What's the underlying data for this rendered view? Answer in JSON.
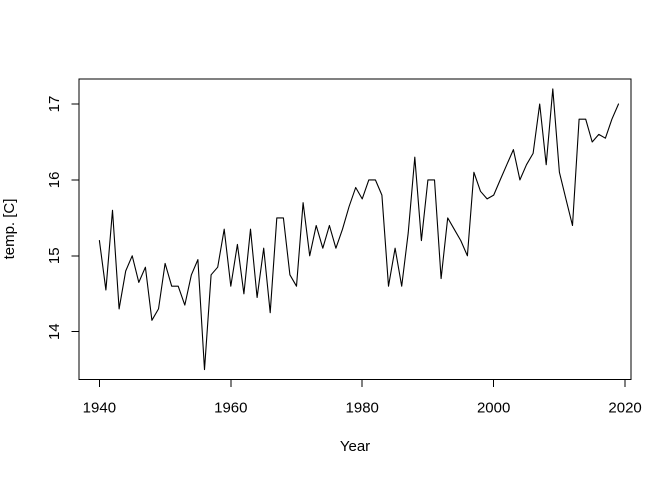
{
  "chart_data": {
    "type": "line",
    "title": "",
    "xlabel": "Year",
    "ylabel": "temp. [C]",
    "line_color": "#000000",
    "background_color": "#ffffff",
    "grid": false,
    "legend": false,
    "xlim": [
      1936.9,
      2020.9
    ],
    "ylim": [
      13.37,
      17.33
    ],
    "xticks": [
      1940,
      1960,
      1980,
      2000,
      2020
    ],
    "xtick_labels": [
      "1940",
      "1960",
      "1980",
      "2000",
      "2020"
    ],
    "yticks": [
      14,
      15,
      16,
      17
    ],
    "ytick_labels": [
      "14",
      "15",
      "16",
      "17"
    ],
    "years": [
      1940,
      1941,
      1942,
      1943,
      1944,
      1945,
      1946,
      1947,
      1948,
      1949,
      1950,
      1951,
      1952,
      1953,
      1954,
      1955,
      1956,
      1957,
      1958,
      1959,
      1960,
      1961,
      1962,
      1963,
      1964,
      1965,
      1966,
      1967,
      1968,
      1969,
      1970,
      1971,
      1972,
      1973,
      1974,
      1975,
      1976,
      1977,
      1978,
      1979,
      1980,
      1981,
      1982,
      1983,
      1984,
      1985,
      1986,
      1987,
      1988,
      1989,
      1990,
      1991,
      1992,
      1993,
      1994,
      1995,
      1996,
      1997,
      1998,
      1999,
      2000,
      2001,
      2002,
      2003,
      2004,
      2005,
      2006,
      2007,
      2008,
      2009,
      2010,
      2011,
      2012,
      2013,
      2014,
      2015,
      2016,
      2017,
      2018,
      2019
    ],
    "values": [
      15.2,
      14.55,
      15.6,
      14.3,
      14.8,
      15.0,
      14.65,
      14.85,
      14.15,
      14.3,
      14.9,
      14.6,
      14.6,
      14.35,
      14.75,
      14.95,
      13.5,
      14.75,
      14.85,
      15.35,
      14.6,
      15.15,
      14.5,
      15.35,
      14.45,
      15.1,
      14.25,
      15.5,
      15.5,
      14.75,
      14.6,
      15.7,
      15.0,
      15.4,
      15.1,
      15.4,
      15.1,
      15.35,
      15.65,
      15.9,
      15.75,
      16.0,
      16.0,
      15.8,
      14.6,
      15.1,
      14.6,
      15.3,
      16.3,
      15.2,
      16.0,
      16.0,
      14.7,
      15.5,
      15.35,
      15.2,
      15.0,
      16.1,
      15.85,
      15.75,
      15.8,
      16.0,
      16.2,
      16.4,
      16.0,
      16.2,
      16.35,
      17.0,
      16.2,
      17.2,
      16.1,
      15.75,
      15.4,
      16.8,
      16.8,
      16.5,
      16.6,
      16.55,
      16.8,
      17.0
    ]
  }
}
